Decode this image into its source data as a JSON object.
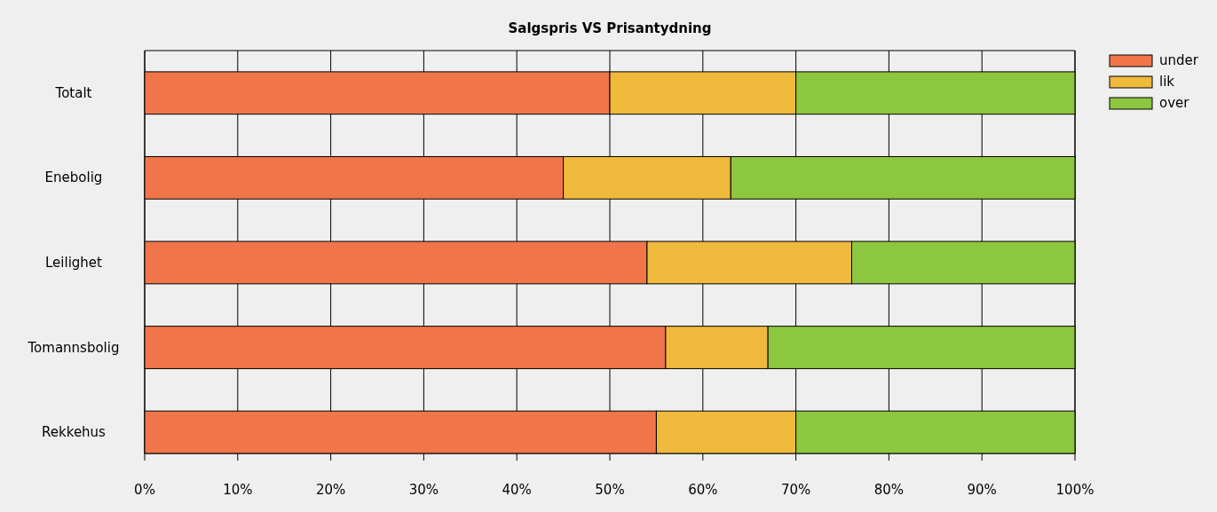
{
  "chart_data": {
    "type": "bar",
    "orientation": "horizontal",
    "stacked": true,
    "title": "Salgspris VS Prisantydning",
    "categories": [
      "Totalt",
      "Enebolig",
      "Leilighet",
      "Tomannsbolig",
      "Rekkehus"
    ],
    "series": [
      {
        "name": "under",
        "color": "#f0764a",
        "values": [
          50,
          45,
          54,
          56,
          55
        ]
      },
      {
        "name": "lik",
        "color": "#efb93c",
        "values": [
          20,
          18,
          22,
          11,
          15
        ]
      },
      {
        "name": "over",
        "color": "#8dc63f",
        "values": [
          30,
          37,
          24,
          33,
          30
        ]
      }
    ],
    "xlim": [
      0,
      100
    ],
    "xticks": [
      {
        "value": 0,
        "label": "0%"
      },
      {
        "value": 10,
        "label": "10%"
      },
      {
        "value": 20,
        "label": "20%"
      },
      {
        "value": 30,
        "label": "30%"
      },
      {
        "value": 40,
        "label": "40%"
      },
      {
        "value": 50,
        "label": "50%"
      },
      {
        "value": 60,
        "label": "60%"
      },
      {
        "value": 70,
        "label": "70%"
      },
      {
        "value": 80,
        "label": "80%"
      },
      {
        "value": 90,
        "label": "90%"
      },
      {
        "value": 100,
        "label": "100%"
      }
    ],
    "grid": "x",
    "legend": "top right"
  }
}
